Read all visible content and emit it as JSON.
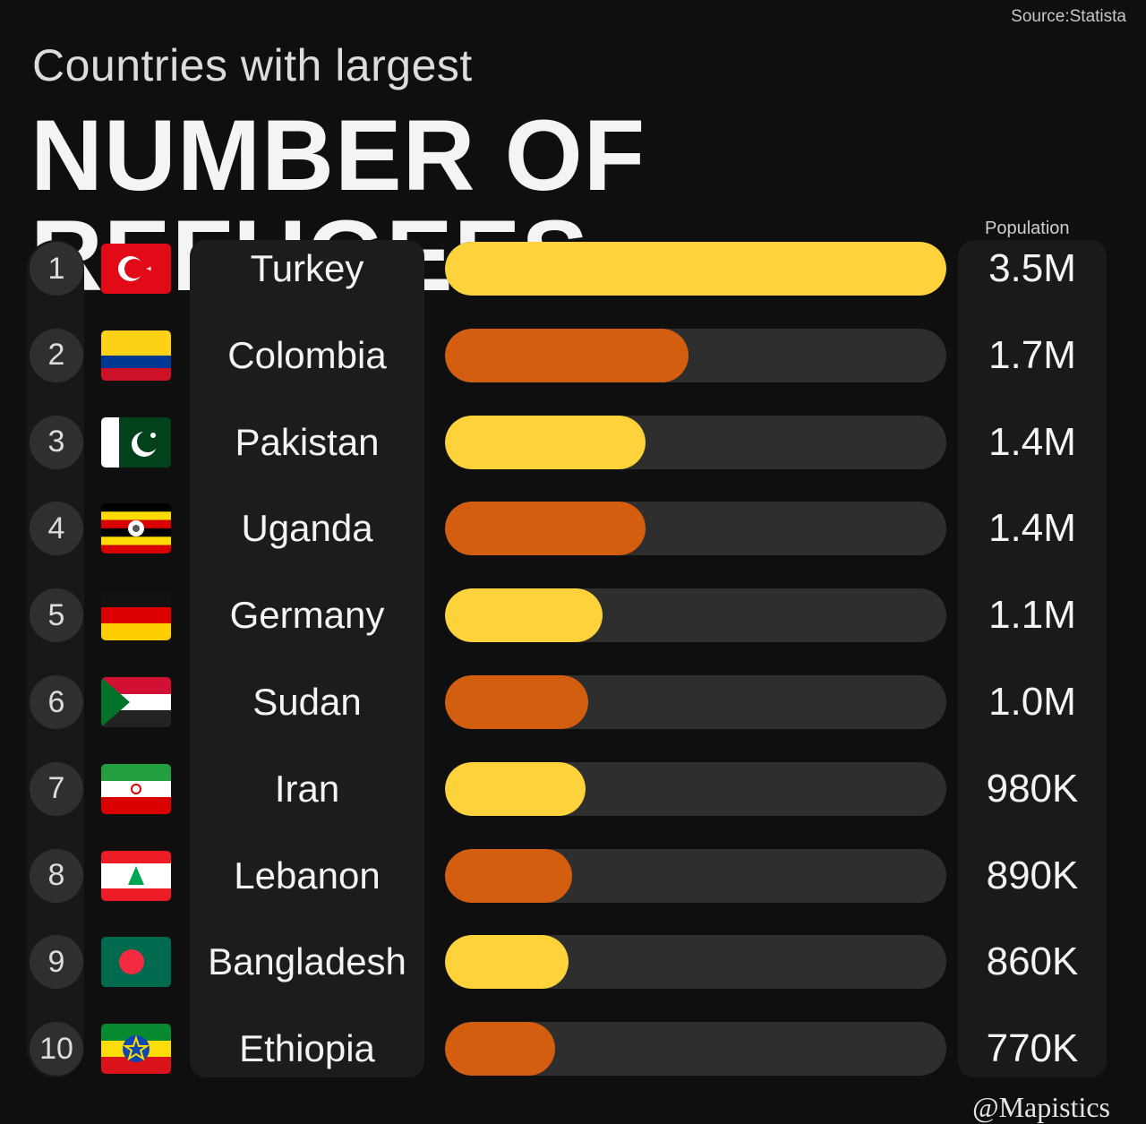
{
  "source": "Source:Statista",
  "subtitle": "Countries with largest",
  "title": "NUMBER OF REFUGEES",
  "population_label": "Population",
  "credit": "@Mapistics",
  "colors": {
    "gold": "#fdd23b",
    "orange": "#d35e10",
    "track": "#2e2e2e",
    "background": "#0f0f0f"
  },
  "chart_data": {
    "type": "bar",
    "orientation": "horizontal",
    "title": "NUMBER OF REFUGEES",
    "subtitle": "Countries with largest",
    "value_label": "Population",
    "xlim": [
      0,
      3.5
    ],
    "unit": "millions",
    "rows": [
      {
        "rank": "1",
        "country": "Turkey",
        "value": 3.5,
        "label": "3.5M",
        "flag": "turkey-flag",
        "color": "#fdd23b"
      },
      {
        "rank": "2",
        "country": "Colombia",
        "value": 1.7,
        "label": "1.7M",
        "flag": "colombia-flag",
        "color": "#d35e10"
      },
      {
        "rank": "3",
        "country": "Pakistan",
        "value": 1.4,
        "label": "1.4M",
        "flag": "pakistan-flag",
        "color": "#fdd23b"
      },
      {
        "rank": "4",
        "country": "Uganda",
        "value": 1.4,
        "label": "1.4M",
        "flag": "uganda-flag",
        "color": "#d35e10"
      },
      {
        "rank": "5",
        "country": "Germany",
        "value": 1.1,
        "label": "1.1M",
        "flag": "germany-flag",
        "color": "#fdd23b"
      },
      {
        "rank": "6",
        "country": "Sudan",
        "value": 1.0,
        "label": "1.0M",
        "flag": "sudan-flag",
        "color": "#d35e10"
      },
      {
        "rank": "7",
        "country": "Iran",
        "value": 0.98,
        "label": "980K",
        "flag": "iran-flag",
        "color": "#fdd23b"
      },
      {
        "rank": "8",
        "country": "Lebanon",
        "value": 0.89,
        "label": "890K",
        "flag": "lebanon-flag",
        "color": "#d35e10"
      },
      {
        "rank": "9",
        "country": "Bangladesh",
        "value": 0.86,
        "label": "860K",
        "flag": "bangladesh-flag",
        "color": "#fdd23b"
      },
      {
        "rank": "10",
        "country": "Ethiopia",
        "value": 0.77,
        "label": "770K",
        "flag": "ethiopia-flag",
        "color": "#d35e10"
      }
    ]
  }
}
